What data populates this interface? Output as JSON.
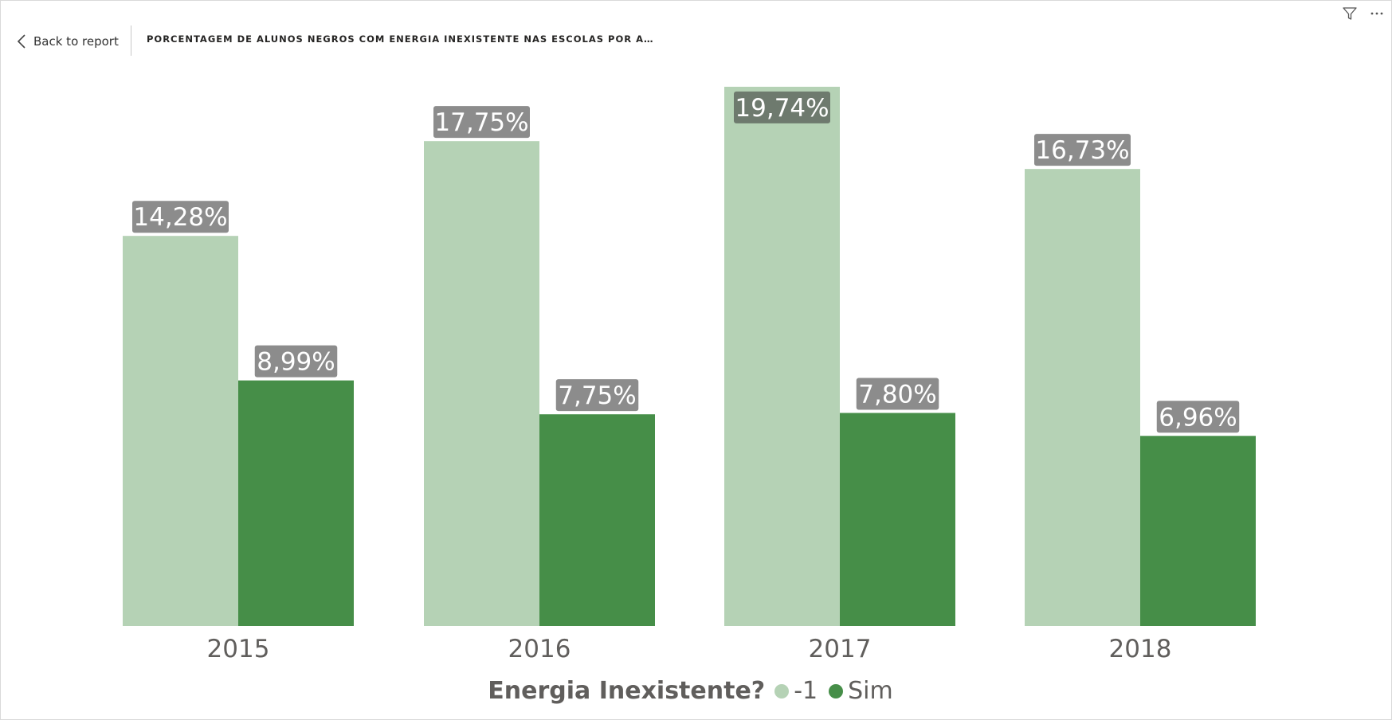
{
  "header": {
    "back_label": "Back to report",
    "title": "PORCENTAGEM DE ALUNOS NEGROS COM ENERGIA INEXISTENTE NAS ESCOLAS POR A…"
  },
  "toolbar": {
    "filter_icon": "filter-icon",
    "more_icon": "more-options-icon"
  },
  "colors": {
    "series_neg1": "#b5d2b5",
    "series_sim": "#468e48",
    "label_bg": "#8c8c8c",
    "label_bg_highlight": "#6e7a6e",
    "axis_text": "#605e5c"
  },
  "chart_data": {
    "type": "bar",
    "categories": [
      "2015",
      "2016",
      "2017",
      "2018"
    ],
    "series": [
      {
        "name": "-1",
        "values": [
          14.28,
          17.75,
          19.74,
          16.73
        ],
        "labels": [
          "14,28%",
          "17,75%",
          "19,74%",
          "16,73%"
        ]
      },
      {
        "name": "Sim",
        "values": [
          8.99,
          7.75,
          7.8,
          6.96
        ],
        "labels": [
          "8,99%",
          "7,75%",
          "7,80%",
          "6,96%"
        ]
      }
    ],
    "legend": {
      "title": "Energia Inexistente?",
      "position": "bottom-center"
    },
    "ylim": [
      0,
      20
    ],
    "grid": false
  }
}
